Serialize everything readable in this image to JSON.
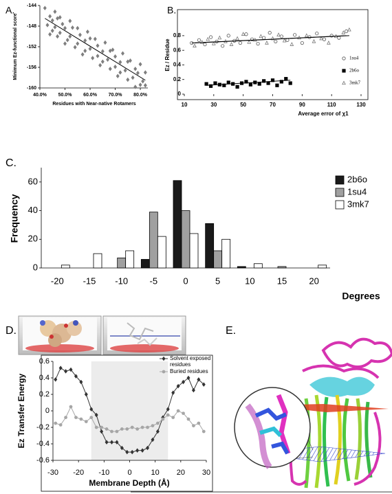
{
  "chart_data": [
    {
      "type": "scatter",
      "panel": "A.",
      "y_label": "Minimum Ez-functional score",
      "x_label": "Residues with Near-native Rotamers",
      "xlim": [
        40,
        83
      ],
      "xticks": [
        {
          "value": 40,
          "label": "40.0%"
        },
        {
          "value": 50,
          "label": "50.0%"
        },
        {
          "value": 60,
          "label": "60.0%"
        },
        {
          "value": 70,
          "label": "70.0%"
        },
        {
          "value": 80,
          "label": "80.0%"
        }
      ],
      "ylim": [
        -160,
        -144
      ],
      "yticks": [
        -144,
        -148,
        -152,
        -156,
        -160
      ],
      "color": "#7f7f7f",
      "marker": "diamond",
      "filled": true,
      "x": [
        42,
        43,
        44,
        44,
        45,
        45,
        46,
        46,
        47,
        47,
        48,
        48,
        49,
        50,
        50,
        51,
        52,
        52,
        53,
        54,
        55,
        55,
        56,
        57,
        58,
        58,
        59,
        60,
        60,
        61,
        62,
        63,
        63,
        64,
        65,
        65,
        66,
        67,
        68,
        68,
        69,
        70,
        70,
        71,
        72,
        72,
        73,
        74,
        75,
        75,
        76,
        77,
        78,
        78,
        79,
        80,
        80,
        81,
        82,
        82
      ],
      "values": [
        -144.5,
        -147.8,
        -146.1,
        -149.6,
        -146.9,
        -148.9,
        -145.2,
        -148.2,
        -146.5,
        -150.0,
        -146.3,
        -149.3,
        -147.6,
        -151.4,
        -148.4,
        -150.7,
        -147.0,
        -150.0,
        -148.3,
        -152.1,
        -148.4,
        -151.4,
        -149.7,
        -153.5,
        -150.8,
        -152.8,
        -149.1,
        -152.4,
        -150.4,
        -154.2,
        -150.5,
        -153.8,
        -151.8,
        -155.6,
        -152.9,
        -154.9,
        -151.2,
        -154.5,
        -152.8,
        -156.3,
        -152.6,
        -155.9,
        -153.9,
        -157.7,
        -155.0,
        -157.0,
        -153.3,
        -156.6,
        -154.9,
        -158.4,
        -154.7,
        -158.0,
        -156.3,
        -159.8,
        -157.1,
        -159.4,
        -155.4,
        -158.7,
        -157.0,
        -159.5
      ],
      "trendline": {
        "x": [
          42,
          82
        ],
        "y": [
          -146.5,
          -158.5
        ]
      }
    },
    {
      "type": "scatter",
      "panel": "B.",
      "y_label": "Ez / Residue",
      "x_label": "Average error of χ1",
      "xlim": [
        10,
        130
      ],
      "xticks": [
        10,
        30,
        50,
        70,
        90,
        110,
        130
      ],
      "ylim": [
        0,
        1.1
      ],
      "yticks": [
        0,
        0.2,
        0.4,
        0.6,
        0.8
      ],
      "series": [
        {
          "name": "1su4",
          "color": "#555555",
          "marker": "circle",
          "filled": false,
          "x": [
            15,
            20,
            24,
            28,
            32,
            36,
            40,
            44,
            48,
            52,
            56,
            60,
            64,
            68,
            72,
            76,
            80,
            85,
            90,
            95,
            100,
            105,
            110,
            115,
            120
          ],
          "values": [
            0.7,
            0.74,
            0.68,
            0.78,
            0.72,
            0.66,
            0.8,
            0.73,
            0.7,
            0.82,
            0.75,
            0.69,
            0.77,
            0.84,
            0.72,
            0.79,
            0.74,
            0.81,
            0.7,
            0.78,
            0.83,
            0.75,
            0.8,
            0.77,
            0.86
          ],
          "trendline": {
            "x": [
              15,
              120
            ],
            "y": [
              0.7,
              0.8
            ]
          }
        },
        {
          "name": "2b6o",
          "color": "#000000",
          "marker": "square",
          "filled": true,
          "x": [
            25,
            28,
            31,
            34,
            37,
            40,
            43,
            46,
            49,
            52,
            55,
            58,
            61,
            64,
            67,
            70,
            73,
            76,
            79,
            82
          ],
          "values": [
            0.14,
            0.11,
            0.15,
            0.13,
            0.12,
            0.16,
            0.14,
            0.1,
            0.15,
            0.17,
            0.13,
            0.16,
            0.14,
            0.18,
            0.15,
            0.19,
            0.12,
            0.17,
            0.21,
            0.15
          ],
          "trendline": {
            "x": [
              25,
              82
            ],
            "y": [
              0.12,
              0.19
            ]
          }
        },
        {
          "name": "3mk7",
          "color": "#777777",
          "marker": "triangle",
          "filled": false,
          "x": [
            17,
            22,
            26,
            30,
            34,
            38,
            42,
            46,
            50,
            54,
            58,
            62,
            66,
            70,
            74,
            78,
            83,
            88,
            93,
            98,
            103,
            108,
            113,
            118,
            122
          ],
          "values": [
            0.66,
            0.71,
            0.75,
            0.69,
            0.77,
            0.72,
            0.68,
            0.76,
            0.82,
            0.71,
            0.74,
            0.79,
            0.7,
            0.76,
            0.81,
            0.73,
            0.68,
            0.77,
            0.8,
            0.72,
            0.76,
            0.7,
            0.79,
            0.84,
            0.88
          ],
          "trendline": {
            "x": [
              17,
              122
            ],
            "y": [
              0.7,
              0.8
            ]
          }
        }
      ]
    },
    {
      "type": "bar",
      "panel": "C.",
      "y_label": "Frequency",
      "x_label": "Degrees",
      "categories": [
        "-20",
        "-15",
        "-10",
        "-5",
        "0",
        "5",
        "10",
        "15",
        "20"
      ],
      "ylim": [
        0,
        70
      ],
      "yticks": [
        0,
        20,
        40,
        60
      ],
      "series": [
        {
          "name": "2b6o",
          "color": "#1a1a1a",
          "values": [
            0,
            0,
            0,
            6,
            61,
            31,
            1,
            0,
            0
          ]
        },
        {
          "name": "1su4",
          "color": "#a0a0a0",
          "values": [
            0,
            0,
            7,
            39,
            40,
            12,
            0,
            1,
            0
          ]
        },
        {
          "name": "3mk7",
          "color": "#ffffff",
          "values": [
            2,
            10,
            12,
            22,
            24,
            20,
            3,
            0,
            2
          ]
        }
      ]
    },
    {
      "type": "line",
      "panel": "D.",
      "y_label": "Ez Transfer Energy",
      "x_label": "Membrane Depth (Å)",
      "xlim": [
        -30,
        30
      ],
      "xticks": [
        -30,
        -20,
        -10,
        0,
        10,
        20,
        30
      ],
      "ylim": [
        -0.6,
        0.6
      ],
      "yticks": [
        0.6,
        0.4,
        0.2,
        0,
        -0.2,
        -0.4,
        -0.6
      ],
      "shaded_range": [
        -15,
        15
      ],
      "x": [
        -29,
        -27,
        -25,
        -23,
        -21,
        -19,
        -17,
        -15,
        -13,
        -11,
        -9,
        -7,
        -5,
        -3,
        -1,
        1,
        3,
        5,
        7,
        9,
        11,
        13,
        15,
        17,
        19,
        21,
        23,
        25,
        27,
        29
      ],
      "series": [
        {
          "name": "Solvent exposed residues",
          "color": "#333333",
          "marker": "diamond",
          "values": [
            0.38,
            0.52,
            0.48,
            0.5,
            0.42,
            0.35,
            0.2,
            0.02,
            -0.05,
            -0.25,
            -0.38,
            -0.38,
            -0.38,
            -0.45,
            -0.5,
            -0.5,
            -0.48,
            -0.48,
            -0.45,
            -0.35,
            -0.25,
            -0.08,
            0.02,
            0.22,
            0.3,
            0.35,
            0.4,
            0.25,
            0.38,
            0.32
          ]
        },
        {
          "name": "Buried residues",
          "color": "#a6a6a6",
          "marker": "circle",
          "values": [
            -0.15,
            -0.17,
            -0.08,
            0.05,
            -0.08,
            -0.1,
            -0.13,
            -0.08,
            -0.2,
            -0.2,
            -0.22,
            -0.25,
            -0.25,
            -0.22,
            -0.22,
            -0.2,
            -0.22,
            -0.2,
            -0.2,
            -0.18,
            -0.15,
            -0.1,
            -0.05,
            -0.08,
            0.0,
            -0.03,
            -0.1,
            -0.18,
            -0.15,
            -0.25
          ]
        }
      ]
    }
  ],
  "figure_e": {
    "panel": "E."
  }
}
